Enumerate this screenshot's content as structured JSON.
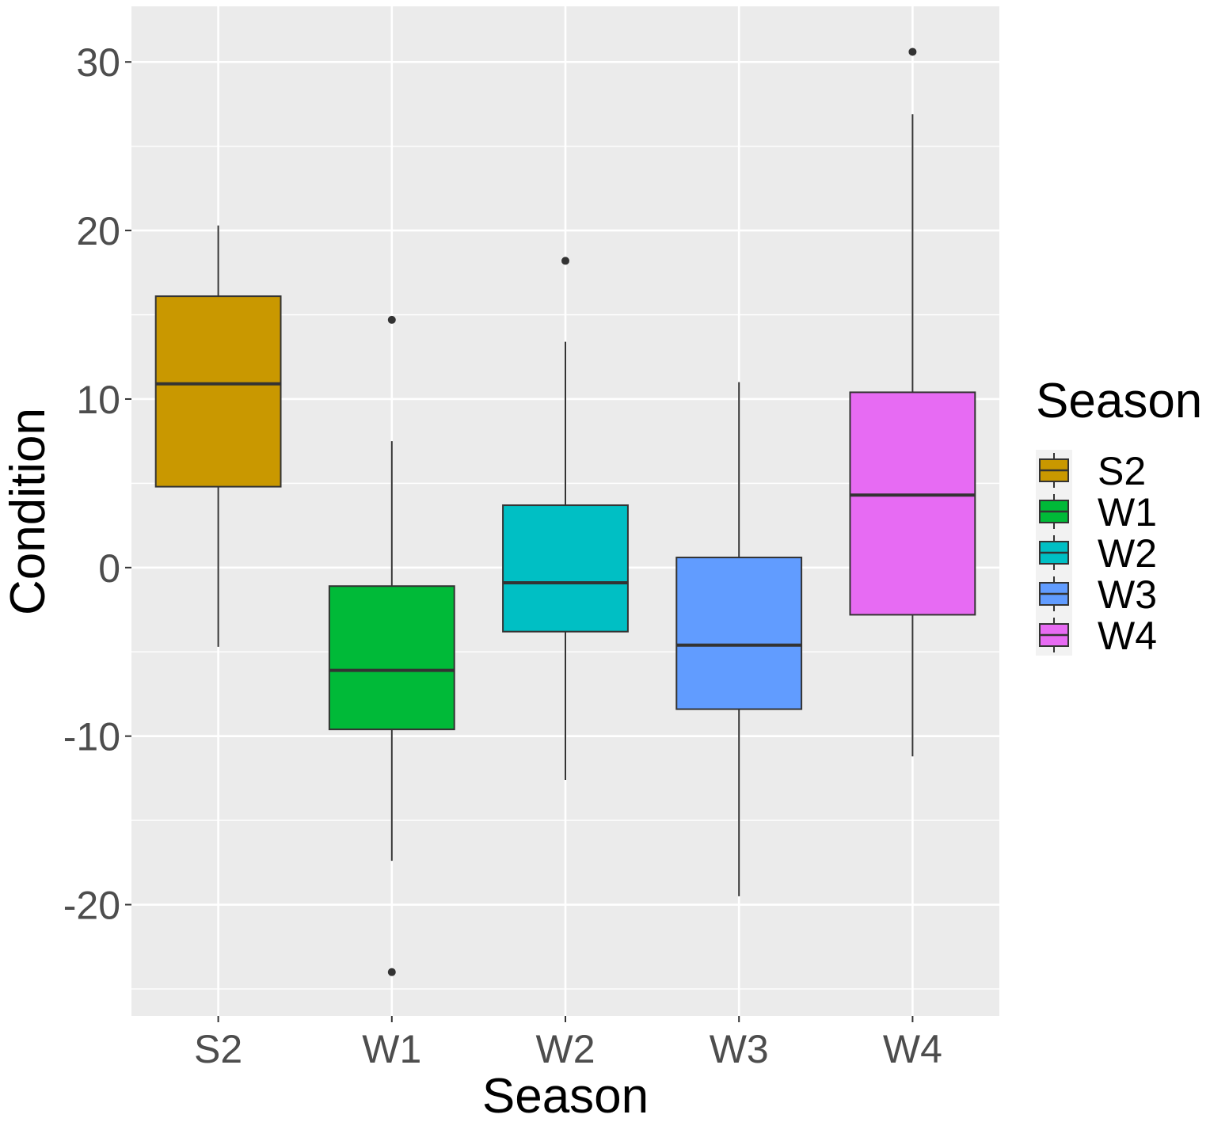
{
  "chart_data": {
    "type": "boxplot",
    "title": "",
    "xlabel": "Season",
    "ylabel": "Condition",
    "ylim": [
      -26.6,
      33.3
    ],
    "yticks": [
      -20,
      -10,
      0,
      10,
      20,
      30
    ],
    "grid": true,
    "panel_background": "#ebebeb",
    "legend": {
      "title": "Season",
      "position": "right"
    },
    "categories": [
      "S2",
      "W1",
      "W2",
      "W3",
      "W4"
    ],
    "series": [
      {
        "name": "S2",
        "color": "#c99800",
        "lower_whisker": -4.7,
        "q1": 4.8,
        "median": 10.9,
        "q3": 16.1,
        "upper_whisker": 20.3,
        "outliers": []
      },
      {
        "name": "W1",
        "color": "#00ba38",
        "lower_whisker": -17.4,
        "q1": -9.6,
        "median": -6.1,
        "q3": -1.1,
        "upper_whisker": 7.5,
        "outliers": [
          14.7,
          -24.0
        ]
      },
      {
        "name": "W2",
        "color": "#00bfc4",
        "lower_whisker": -12.6,
        "q1": -3.8,
        "median": -0.9,
        "q3": 3.7,
        "upper_whisker": 13.4,
        "outliers": [
          18.2
        ]
      },
      {
        "name": "W3",
        "color": "#619cff",
        "lower_whisker": -19.5,
        "q1": -8.4,
        "median": -4.6,
        "q3": 0.6,
        "upper_whisker": 11.0,
        "outliers": []
      },
      {
        "name": "W4",
        "color": "#e76bf3",
        "lower_whisker": -11.2,
        "q1": -2.8,
        "median": 4.3,
        "q3": 10.4,
        "upper_whisker": 26.9,
        "outliers": [
          30.6
        ]
      }
    ]
  }
}
